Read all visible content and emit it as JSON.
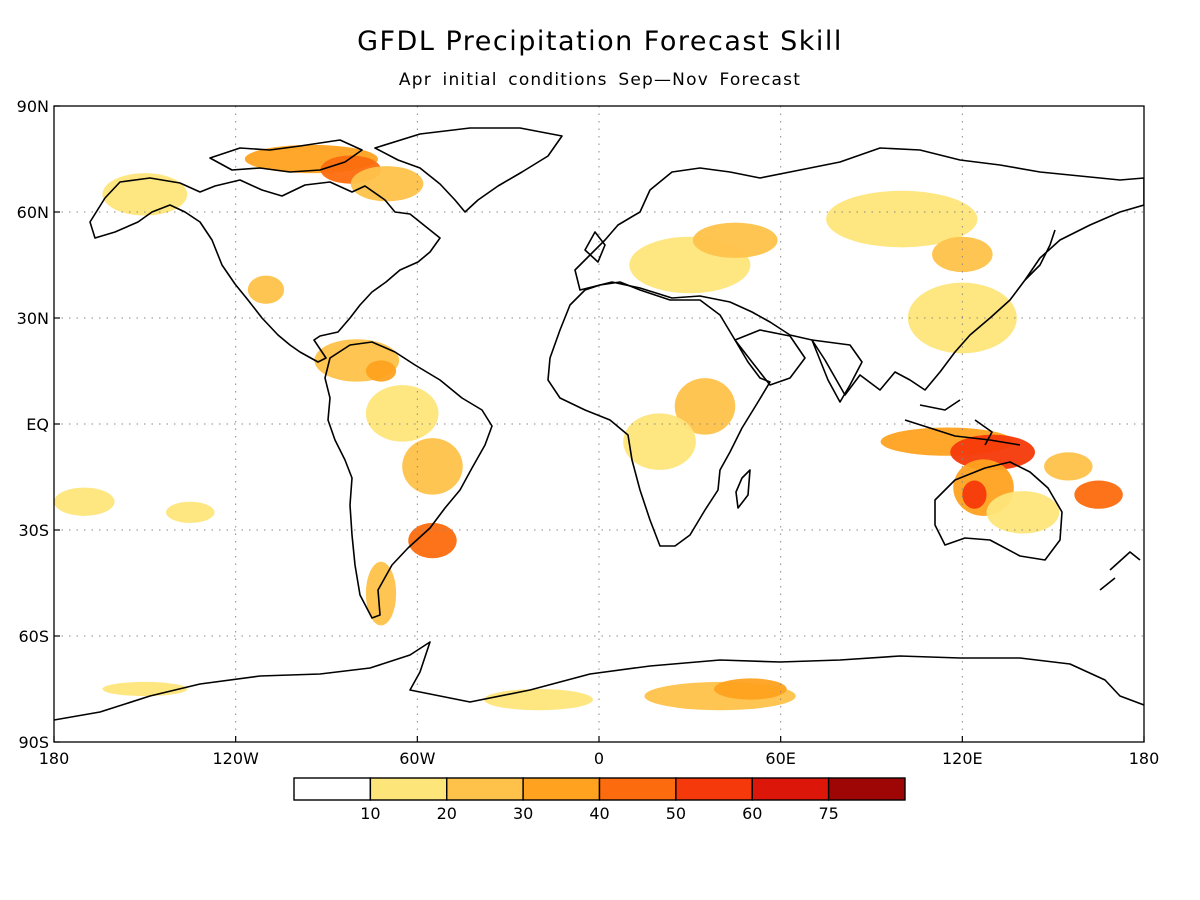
{
  "title": "GFDL Precipitation Forecast Skill",
  "subtitle": "Apr initial conditions   Sep—Nov Forecast",
  "map": {
    "projection": "equirectangular",
    "lon_range": [
      -180,
      180
    ],
    "lat_range": [
      -90,
      90
    ],
    "grid": "dotted",
    "lat_labels": [
      "90N",
      "60N",
      "30N",
      "EQ",
      "30S",
      "60S",
      "90S"
    ],
    "lat_values": [
      90,
      60,
      30,
      0,
      -30,
      -60,
      -90
    ],
    "lon_labels": [
      "180",
      "120W",
      "60W",
      "0",
      "60E",
      "120E",
      "180"
    ],
    "lon_values": [
      -180,
      -120,
      -60,
      0,
      60,
      120,
      180
    ]
  },
  "colorbar": {
    "tick_labels": [
      "10",
      "20",
      "30",
      "40",
      "50",
      "60",
      "75"
    ],
    "colors": [
      "#ffffff",
      "#fee57a",
      "#fec24a",
      "#fea21f",
      "#fc6b0e",
      "#f6390a",
      "#dc170a",
      "#9e0505"
    ]
  },
  "skill_patches": [
    {
      "lon": -150,
      "lat": 65,
      "rx": 14,
      "ry": 6,
      "level": 1
    },
    {
      "lon": -95,
      "lat": 75,
      "rx": 22,
      "ry": 4,
      "level": 3
    },
    {
      "lon": -82,
      "lat": 72,
      "rx": 10,
      "ry": 4,
      "level": 4
    },
    {
      "lon": -70,
      "lat": 68,
      "rx": 12,
      "ry": 5,
      "level": 2
    },
    {
      "lon": -110,
      "lat": 38,
      "rx": 6,
      "ry": 4,
      "level": 2
    },
    {
      "lon": -80,
      "lat": 18,
      "rx": 14,
      "ry": 6,
      "level": 2
    },
    {
      "lon": -72,
      "lat": 15,
      "rx": 5,
      "ry": 3,
      "level": 3
    },
    {
      "lon": -65,
      "lat": 3,
      "rx": 12,
      "ry": 8,
      "level": 1
    },
    {
      "lon": -55,
      "lat": -12,
      "rx": 10,
      "ry": 8,
      "level": 2
    },
    {
      "lon": -55,
      "lat": -33,
      "rx": 8,
      "ry": 5,
      "level": 4
    },
    {
      "lon": -72,
      "lat": -48,
      "rx": 5,
      "ry": 9,
      "level": 2
    },
    {
      "lon": -170,
      "lat": -22,
      "rx": 10,
      "ry": 4,
      "level": 1
    },
    {
      "lon": -135,
      "lat": -25,
      "rx": 8,
      "ry": 3,
      "level": 1
    },
    {
      "lon": 30,
      "lat": 45,
      "rx": 20,
      "ry": 8,
      "level": 1
    },
    {
      "lon": 45,
      "lat": 52,
      "rx": 14,
      "ry": 5,
      "level": 2
    },
    {
      "lon": 100,
      "lat": 58,
      "rx": 25,
      "ry": 8,
      "level": 1
    },
    {
      "lon": 120,
      "lat": 48,
      "rx": 10,
      "ry": 5,
      "level": 2
    },
    {
      "lon": 120,
      "lat": 30,
      "rx": 18,
      "ry": 10,
      "level": 1
    },
    {
      "lon": 35,
      "lat": 5,
      "rx": 10,
      "ry": 8,
      "level": 2
    },
    {
      "lon": 20,
      "lat": -5,
      "rx": 12,
      "ry": 8,
      "level": 1
    },
    {
      "lon": 115,
      "lat": -5,
      "rx": 22,
      "ry": 4,
      "level": 3
    },
    {
      "lon": 130,
      "lat": -8,
      "rx": 14,
      "ry": 5,
      "level": 5
    },
    {
      "lon": 127,
      "lat": -18,
      "rx": 10,
      "ry": 8,
      "level": 3
    },
    {
      "lon": 124,
      "lat": -20,
      "rx": 4,
      "ry": 4,
      "level": 5
    },
    {
      "lon": 140,
      "lat": -25,
      "rx": 12,
      "ry": 6,
      "level": 1
    },
    {
      "lon": 165,
      "lat": -20,
      "rx": 8,
      "ry": 4,
      "level": 4
    },
    {
      "lon": 155,
      "lat": -12,
      "rx": 8,
      "ry": 4,
      "level": 2
    },
    {
      "lon": 40,
      "lat": -77,
      "rx": 25,
      "ry": 4,
      "level": 2
    },
    {
      "lon": 50,
      "lat": -75,
      "rx": 12,
      "ry": 3,
      "level": 3
    },
    {
      "lon": -20,
      "lat": -78,
      "rx": 18,
      "ry": 3,
      "level": 1
    },
    {
      "lon": -150,
      "lat": -75,
      "rx": 14,
      "ry": 2,
      "level": 1
    }
  ]
}
